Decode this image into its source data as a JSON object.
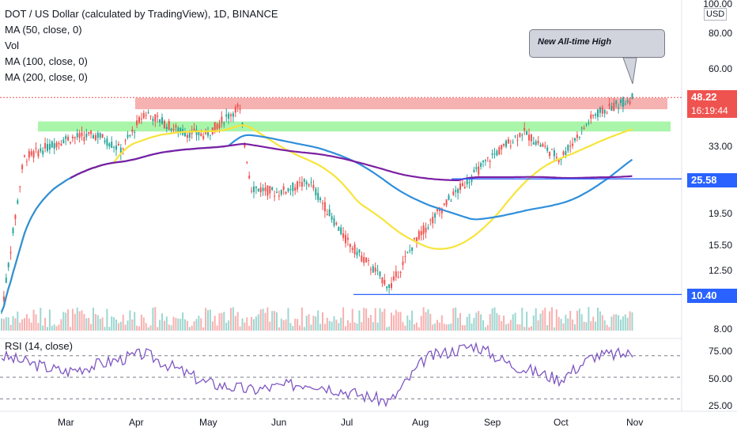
{
  "legend": {
    "title": "DOT / US Dollar (calculated by TradingView), 1D, BINANCE",
    "ma50": "MA (50, close, 0)",
    "vol": "Vol",
    "ma100": "MA (100, close, 0)",
    "ma200": "MA (200, close, 0)"
  },
  "rsi_legend": "RSI (14, close)",
  "annotation": "New All-time High",
  "currency": "USD",
  "price_ticks": [
    "100.00",
    "80.00",
    "60.00",
    "48.22",
    "33.00",
    "25.58",
    "19.50",
    "15.50",
    "12.50",
    "10.40",
    "8.00"
  ],
  "rsi_ticks": [
    "75.00",
    "50.00",
    "25.00"
  ],
  "price_tags": {
    "last_price": "48.22",
    "countdown": "16:19:44",
    "support_level": "25.58",
    "low_level": "10.40"
  },
  "months": [
    "Mar",
    "Apr",
    "May",
    "Jun",
    "Jul",
    "Aug",
    "Sep",
    "Oct",
    "Nov"
  ],
  "colors": {
    "up": "#26a69a",
    "down": "#ef5350",
    "ma50": "#f7e43a",
    "ma100": "#2f8fdb",
    "ma200": "#7b1fa2",
    "resistance_zone": "#f4a3a3",
    "support_zone": "#9af39a",
    "level_line": "#2962ff",
    "rsi": "#7e57c2"
  },
  "chart_data": {
    "type": "candlestick",
    "symbol": "DOT/USD",
    "timeframe": "1D",
    "exchange": "BINANCE",
    "y_scale": "log",
    "last_price": 48.22,
    "key_levels": [
      25.58,
      10.4
    ],
    "resistance_zone": [
      44,
      48
    ],
    "support_zone": [
      37,
      40
    ],
    "ath_price": 49.5,
    "close_path": [
      {
        "month": "Feb",
        "day": 10,
        "close": 8.3
      },
      {
        "month": "Feb",
        "day": 20,
        "close": 30
      },
      {
        "month": "Mar",
        "day": 1,
        "close": 35
      },
      {
        "month": "Mar",
        "day": 15,
        "close": 36
      },
      {
        "month": "Mar",
        "day": 25,
        "close": 32
      },
      {
        "month": "Apr",
        "day": 5,
        "close": 43
      },
      {
        "month": "Apr",
        "day": 20,
        "close": 37
      },
      {
        "month": "May",
        "day": 1,
        "close": 36
      },
      {
        "month": "May",
        "day": 15,
        "close": 45
      },
      {
        "month": "May",
        "day": 20,
        "close": 24
      },
      {
        "month": "Jun",
        "day": 1,
        "close": 23
      },
      {
        "month": "Jun",
        "day": 15,
        "close": 25
      },
      {
        "month": "Jul",
        "day": 1,
        "close": 16
      },
      {
        "month": "Jul",
        "day": 20,
        "close": 11
      },
      {
        "month": "Aug",
        "day": 1,
        "close": 16
      },
      {
        "month": "Aug",
        "day": 15,
        "close": 22
      },
      {
        "month": "Sep",
        "day": 1,
        "close": 30
      },
      {
        "month": "Sep",
        "day": 15,
        "close": 37
      },
      {
        "month": "Oct",
        "day": 1,
        "close": 30
      },
      {
        "month": "Oct",
        "day": 15,
        "close": 42
      },
      {
        "month": "Nov",
        "day": 1,
        "close": 48.22
      }
    ],
    "rsi_path": [
      {
        "month": "Feb",
        "day": 10,
        "rsi": 70
      },
      {
        "month": "Mar",
        "day": 1,
        "rsi": 55
      },
      {
        "month": "Apr",
        "day": 5,
        "rsi": 72
      },
      {
        "month": "May",
        "day": 1,
        "rsi": 45
      },
      {
        "month": "May",
        "day": 20,
        "rsi": 38
      },
      {
        "month": "Jun",
        "day": 15,
        "rsi": 45
      },
      {
        "month": "Jul",
        "day": 20,
        "rsi": 27
      },
      {
        "month": "Aug",
        "day": 5,
        "rsi": 68
      },
      {
        "month": "Aug",
        "day": 25,
        "rsi": 80
      },
      {
        "month": "Sep",
        "day": 10,
        "rsi": 62
      },
      {
        "month": "Oct",
        "day": 1,
        "rsi": 48
      },
      {
        "month": "Oct",
        "day": 15,
        "rsi": 70
      },
      {
        "month": "Nov",
        "day": 1,
        "rsi": 72
      }
    ],
    "rsi_bands": [
      70,
      50,
      30
    ]
  }
}
